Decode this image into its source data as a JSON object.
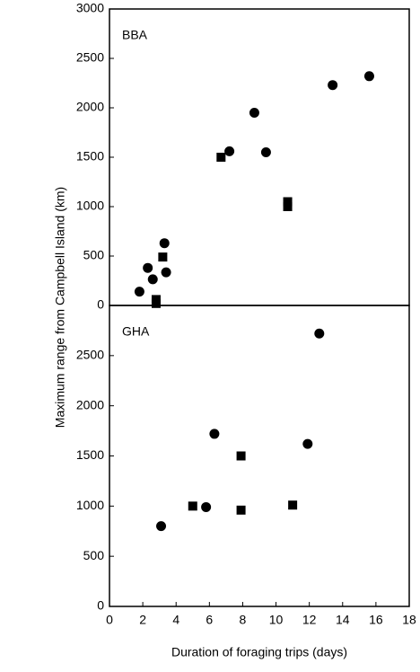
{
  "chart_data": [
    {
      "type": "scatter",
      "title": "BBA",
      "y_label": "Maximum range from Campbell Island (km)",
      "xlim": [
        0,
        18
      ],
      "ylim": [
        0,
        3000
      ],
      "yticks": [
        0,
        500,
        1000,
        1500,
        2000,
        2500,
        3000
      ],
      "series": [
        {
          "marker": "circle",
          "color": "#000000",
          "x": [
            1.8,
            2.3,
            2.6,
            3.3,
            3.4,
            7.2,
            8.7,
            9.4,
            13.4,
            15.6
          ],
          "values": [
            140,
            380,
            265,
            630,
            335,
            1560,
            1950,
            1550,
            2230,
            2320
          ]
        },
        {
          "marker": "square",
          "color": "#000000",
          "x": [
            2.8,
            2.8,
            3.2,
            6.7,
            10.7,
            10.7
          ],
          "values": [
            60,
            20,
            490,
            1500,
            1050,
            1000
          ]
        }
      ]
    },
    {
      "type": "scatter",
      "title": "GHA",
      "x_label": "Duration of foraging trips (days)",
      "xlim": [
        0,
        18
      ],
      "xticks": [
        0,
        2,
        4,
        6,
        8,
        10,
        12,
        14,
        16,
        18
      ],
      "ylim": [
        0,
        3000
      ],
      "yticks": [
        0,
        500,
        1000,
        1500,
        2000,
        2500
      ],
      "series": [
        {
          "marker": "circle",
          "color": "#000000",
          "x": [
            3.1,
            5.8,
            6.3,
            11.9,
            12.6
          ],
          "values": [
            800,
            990,
            1720,
            1620,
            2720
          ]
        },
        {
          "marker": "square",
          "color": "#000000",
          "x": [
            5.0,
            7.9,
            7.9,
            11.0
          ],
          "values": [
            1000,
            1500,
            960,
            1010
          ]
        }
      ]
    }
  ]
}
